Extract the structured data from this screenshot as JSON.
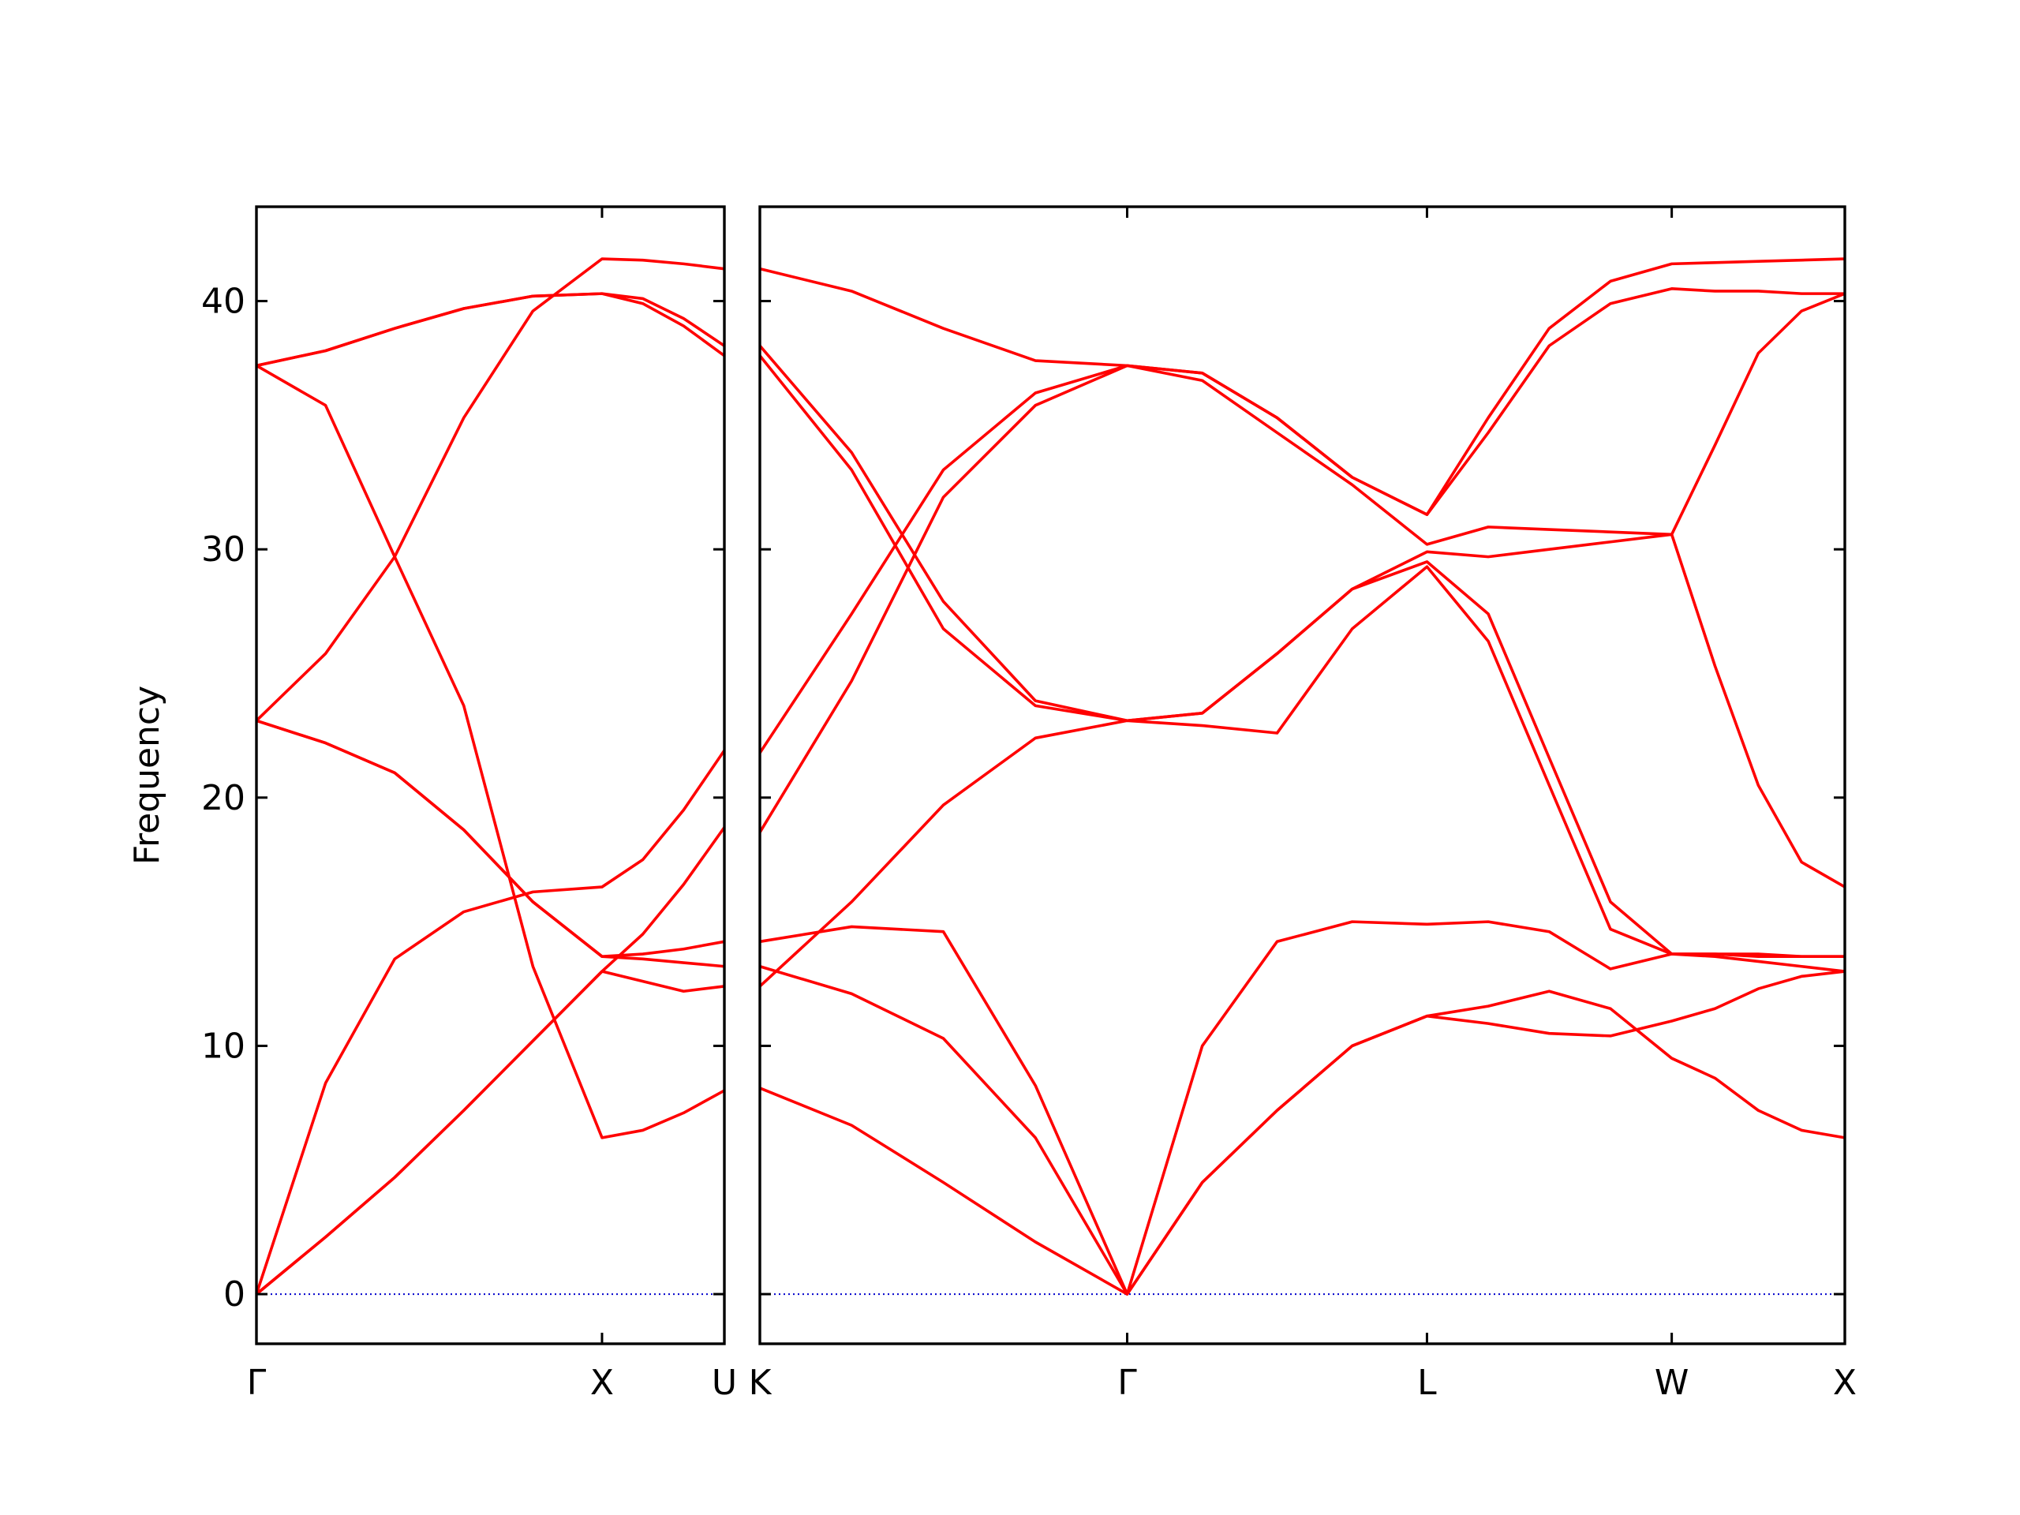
{
  "chart_data": [
    {
      "type": "line",
      "ylabel": "Frequency",
      "color": "#ff0000",
      "ytick_labels": true,
      "x": [
        0,
        0.2,
        0.4,
        0.6,
        0.8,
        1.0,
        1.118,
        1.236,
        1.354
      ],
      "xlim": [
        0,
        1.354
      ],
      "ylim": [
        -2,
        43.8
      ],
      "xticks": [
        {
          "value": 0,
          "label": "Γ"
        },
        {
          "value": 1,
          "label": "X"
        },
        {
          "value": 1.354,
          "label": "U"
        }
      ],
      "yticks": [
        0,
        10,
        20,
        30,
        40
      ],
      "series": [
        {
          "values": [
            0,
            2.3,
            4.7,
            7.4,
            10.2,
            13.0,
            12.6,
            12.2,
            12.4
          ]
        },
        {
          "values": [
            0,
            2.3,
            4.7,
            7.4,
            10.2,
            13.0,
            14.5,
            16.5,
            18.8
          ]
        },
        {
          "values": [
            0,
            8.5,
            13.5,
            15.4,
            16.2,
            16.4,
            17.5,
            19.5,
            21.9
          ]
        },
        {
          "values": [
            37.4,
            35.8,
            29.7,
            23.7,
            13.2,
            6.3,
            6.6,
            7.3,
            8.2
          ]
        },
        {
          "values": [
            23.1,
            22.2,
            21.0,
            18.7,
            15.8,
            13.6,
            13.7,
            13.9,
            14.2
          ]
        },
        {
          "values": [
            23.1,
            22.2,
            21.0,
            18.7,
            15.8,
            13.6,
            13.5,
            13.35,
            13.2
          ]
        },
        {
          "values": [
            23.1,
            25.8,
            29.7,
            35.3,
            39.6,
            41.7,
            41.65,
            41.5,
            41.3
          ]
        },
        {
          "values": [
            37.4,
            38.0,
            38.9,
            39.7,
            40.2,
            40.3,
            39.9,
            39.0,
            37.8
          ]
        },
        {
          "values": [
            37.4,
            38.0,
            38.9,
            39.7,
            40.2,
            40.3,
            40.1,
            39.3,
            38.2
          ]
        }
      ]
    },
    {
      "type": "line",
      "color": "#ff0000",
      "ytick_labels": false,
      "x": [
        0,
        0.265,
        0.53,
        0.796,
        1.061,
        1.278,
        1.494,
        1.711,
        1.927,
        2.104,
        2.28,
        2.457,
        2.634,
        2.759,
        2.884,
        3.009,
        3.134
      ],
      "xlim": [
        0,
        3.134
      ],
      "ylim": [
        -2,
        43.8
      ],
      "xticks": [
        {
          "value": 0,
          "label": "K"
        },
        {
          "value": 1.061,
          "label": "Γ"
        },
        {
          "value": 1.927,
          "label": "L"
        },
        {
          "value": 2.634,
          "label": "W"
        },
        {
          "value": 3.134,
          "label": "X"
        }
      ],
      "yticks": [
        0,
        10,
        20,
        30,
        40
      ],
      "series": [
        {
          "values": [
            8.3,
            6.8,
            4.5,
            2.1,
            0,
            4.5,
            7.4,
            10.0,
            11.2,
            11.6,
            12.2,
            11.5,
            9.5,
            8.7,
            7.4,
            6.6,
            6.3
          ]
        },
        {
          "values": [
            13.2,
            12.1,
            10.3,
            6.3,
            0,
            4.5,
            7.4,
            10.0,
            11.2,
            10.9,
            10.5,
            10.4,
            11.0,
            11.5,
            12.3,
            12.8,
            13.0
          ]
        },
        {
          "values": [
            14.2,
            14.8,
            14.6,
            8.4,
            0,
            10.0,
            14.2,
            15.0,
            14.9,
            15.0,
            14.6,
            13.1,
            13.7,
            13.7,
            13.7,
            13.6,
            13.6
          ]
        },
        {
          "values": [
            12.4,
            15.8,
            19.7,
            22.4,
            23.1,
            22.9,
            22.6,
            26.8,
            29.3,
            26.3,
            20.5,
            14.7,
            13.7,
            13.6,
            13.4,
            13.2,
            13.0
          ]
        },
        {
          "values": [
            37.8,
            33.2,
            26.8,
            23.7,
            23.1,
            23.4,
            25.8,
            28.4,
            29.5,
            27.4,
            21.6,
            15.8,
            13.7,
            13.7,
            13.6,
            13.6,
            13.6
          ]
        },
        {
          "values": [
            38.2,
            33.9,
            27.9,
            23.9,
            23.1,
            23.4,
            25.8,
            28.4,
            29.9,
            29.7,
            30.0,
            30.3,
            30.6,
            25.3,
            20.5,
            17.4,
            16.4
          ]
        },
        {
          "values": [
            18.6,
            24.7,
            32.1,
            35.8,
            37.4,
            36.8,
            34.7,
            32.6,
            30.2,
            30.9,
            30.8,
            30.7,
            30.6,
            34.2,
            37.9,
            39.6,
            40.3
          ]
        },
        {
          "values": [
            21.8,
            27.4,
            33.2,
            36.3,
            37.4,
            37.1,
            35.3,
            32.9,
            31.4,
            34.7,
            38.2,
            39.9,
            40.5,
            40.4,
            40.4,
            40.3,
            40.3
          ]
        },
        {
          "values": [
            41.3,
            40.4,
            38.9,
            37.6,
            37.4,
            37.1,
            35.3,
            32.9,
            31.4,
            35.3,
            38.9,
            40.8,
            41.5,
            41.55,
            41.6,
            41.65,
            41.7
          ]
        }
      ]
    }
  ]
}
